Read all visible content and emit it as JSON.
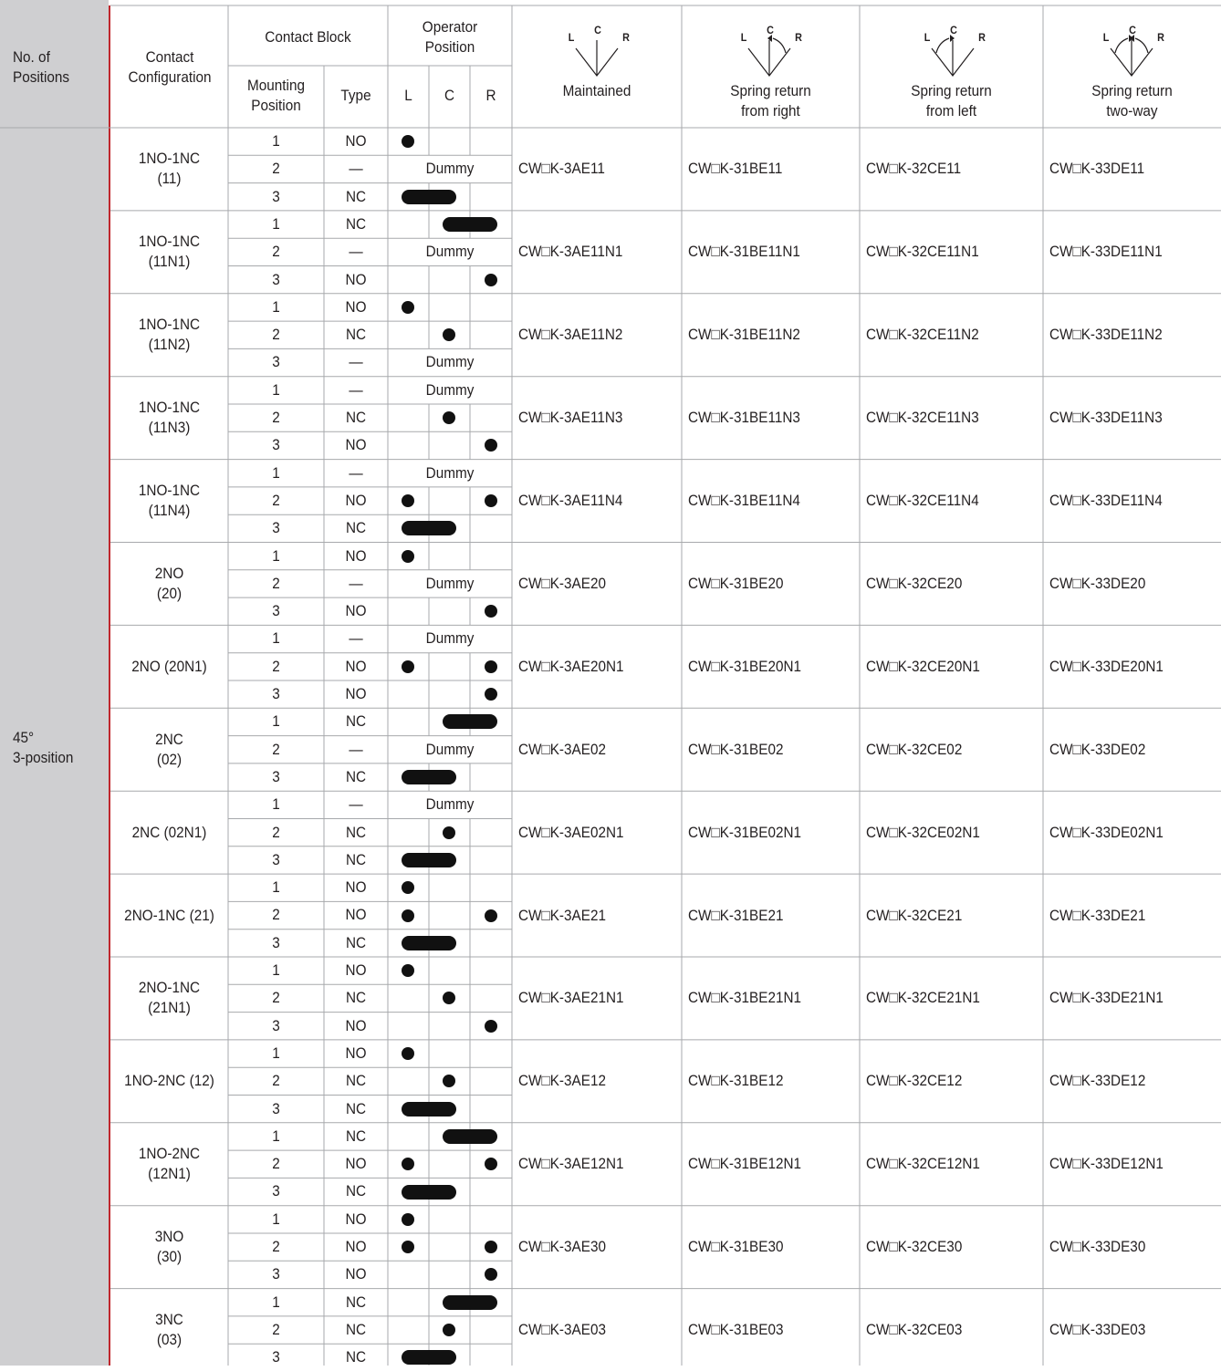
{
  "header": {
    "positions_label": "No. of\nPositions",
    "config_label": "Contact\nConfiguration",
    "contact_block": "Contact Block",
    "operator_position": "Operator\nPosition",
    "mounting_position": "Mounting\nPosition",
    "type": "Type",
    "pos_l": "L",
    "pos_c": "C",
    "pos_r": "R",
    "diagram_l": "L",
    "diagram_c": "C",
    "diagram_r": "R",
    "maintained": "Maintained",
    "spring_right": "Spring return\nfrom right",
    "spring_left": "Spring return\nfrom left",
    "spring_two": "Spring return\ntwo-way"
  },
  "position_label": "45°\n3-position",
  "dummy_label": "Dummy",
  "groups": [
    {
      "config": "1NO-1NC\n(11)",
      "models": [
        "CW□K-3AE11",
        "CW□K-31BE11",
        "CW□K-32CE11",
        "CW□K-33DE11"
      ],
      "rows": [
        {
          "pos": "1",
          "type": "NO",
          "marks": "L"
        },
        {
          "pos": "2",
          "type": "—",
          "marks": "D"
        },
        {
          "pos": "3",
          "type": "NC",
          "marks": "LC"
        }
      ]
    },
    {
      "config": "1NO-1NC\n(11N1)",
      "models": [
        "CW□K-3AE11N1",
        "CW□K-31BE11N1",
        "CW□K-32CE11N1",
        "CW□K-33DE11N1"
      ],
      "rows": [
        {
          "pos": "1",
          "type": "NC",
          "marks": "CR"
        },
        {
          "pos": "2",
          "type": "—",
          "marks": "D"
        },
        {
          "pos": "3",
          "type": "NO",
          "marks": "R"
        }
      ]
    },
    {
      "config": "1NO-1NC\n(11N2)",
      "models": [
        "CW□K-3AE11N2",
        "CW□K-31BE11N2",
        "CW□K-32CE11N2",
        "CW□K-33DE11N2"
      ],
      "rows": [
        {
          "pos": "1",
          "type": "NO",
          "marks": "L"
        },
        {
          "pos": "2",
          "type": "NC",
          "marks": "C"
        },
        {
          "pos": "3",
          "type": "—",
          "marks": "D"
        }
      ]
    },
    {
      "config": "1NO-1NC\n(11N3)",
      "models": [
        "CW□K-3AE11N3",
        "CW□K-31BE11N3",
        "CW□K-32CE11N3",
        "CW□K-33DE11N3"
      ],
      "rows": [
        {
          "pos": "1",
          "type": "—",
          "marks": "D"
        },
        {
          "pos": "2",
          "type": "NC",
          "marks": "C"
        },
        {
          "pos": "3",
          "type": "NO",
          "marks": "R"
        }
      ]
    },
    {
      "config": "1NO-1NC\n(11N4)",
      "models": [
        "CW□K-3AE11N4",
        "CW□K-31BE11N4",
        "CW□K-32CE11N4",
        "CW□K-33DE11N4"
      ],
      "rows": [
        {
          "pos": "1",
          "type": "—",
          "marks": "D"
        },
        {
          "pos": "2",
          "type": "NO",
          "marks": "L,R"
        },
        {
          "pos": "3",
          "type": "NC",
          "marks": "LC"
        }
      ]
    },
    {
      "config": "2NO\n(20)",
      "models": [
        "CW□K-3AE20",
        "CW□K-31BE20",
        "CW□K-32CE20",
        "CW□K-33DE20"
      ],
      "rows": [
        {
          "pos": "1",
          "type": "NO",
          "marks": "L"
        },
        {
          "pos": "2",
          "type": "—",
          "marks": "D"
        },
        {
          "pos": "3",
          "type": "NO",
          "marks": "R"
        }
      ]
    },
    {
      "config": "2NO (20N1)",
      "models": [
        "CW□K-3AE20N1",
        "CW□K-31BE20N1",
        "CW□K-32CE20N1",
        "CW□K-33DE20N1"
      ],
      "rows": [
        {
          "pos": "1",
          "type": "—",
          "marks": "D"
        },
        {
          "pos": "2",
          "type": "NO",
          "marks": "L,R"
        },
        {
          "pos": "3",
          "type": "NO",
          "marks": "R"
        }
      ]
    },
    {
      "config": "2NC\n(02)",
      "models": [
        "CW□K-3AE02",
        "CW□K-31BE02",
        "CW□K-32CE02",
        "CW□K-33DE02"
      ],
      "rows": [
        {
          "pos": "1",
          "type": "NC",
          "marks": "CR"
        },
        {
          "pos": "2",
          "type": "—",
          "marks": "D"
        },
        {
          "pos": "3",
          "type": "NC",
          "marks": "LC"
        }
      ]
    },
    {
      "config": "2NC (02N1)",
      "models": [
        "CW□K-3AE02N1",
        "CW□K-31BE02N1",
        "CW□K-32CE02N1",
        "CW□K-33DE02N1"
      ],
      "rows": [
        {
          "pos": "1",
          "type": "—",
          "marks": "D"
        },
        {
          "pos": "2",
          "type": "NC",
          "marks": "C"
        },
        {
          "pos": "3",
          "type": "NC",
          "marks": "LC"
        }
      ]
    },
    {
      "config": "2NO-1NC (21)",
      "models": [
        "CW□K-3AE21",
        "CW□K-31BE21",
        "CW□K-32CE21",
        "CW□K-33DE21"
      ],
      "rows": [
        {
          "pos": "1",
          "type": "NO",
          "marks": "L"
        },
        {
          "pos": "2",
          "type": "NO",
          "marks": "L,R"
        },
        {
          "pos": "3",
          "type": "NC",
          "marks": "LC"
        }
      ]
    },
    {
      "config": "2NO-1NC\n(21N1)",
      "models": [
        "CW□K-3AE21N1",
        "CW□K-31BE21N1",
        "CW□K-32CE21N1",
        "CW□K-33DE21N1"
      ],
      "rows": [
        {
          "pos": "1",
          "type": "NO",
          "marks": "L"
        },
        {
          "pos": "2",
          "type": "NC",
          "marks": "C"
        },
        {
          "pos": "3",
          "type": "NO",
          "marks": "R"
        }
      ]
    },
    {
      "config": "1NO-2NC (12)",
      "models": [
        "CW□K-3AE12",
        "CW□K-31BE12",
        "CW□K-32CE12",
        "CW□K-33DE12"
      ],
      "rows": [
        {
          "pos": "1",
          "type": "NO",
          "marks": "L"
        },
        {
          "pos": "2",
          "type": "NC",
          "marks": "C"
        },
        {
          "pos": "3",
          "type": "NC",
          "marks": "LC"
        }
      ]
    },
    {
      "config": "1NO-2NC\n(12N1)",
      "models": [
        "CW□K-3AE12N1",
        "CW□K-31BE12N1",
        "CW□K-32CE12N1",
        "CW□K-33DE12N1"
      ],
      "rows": [
        {
          "pos": "1",
          "type": "NC",
          "marks": "CR"
        },
        {
          "pos": "2",
          "type": "NO",
          "marks": "L,R"
        },
        {
          "pos": "3",
          "type": "NC",
          "marks": "LC"
        }
      ]
    },
    {
      "config": "3NO\n(30)",
      "models": [
        "CW□K-3AE30",
        "CW□K-31BE30",
        "CW□K-32CE30",
        "CW□K-33DE30"
      ],
      "rows": [
        {
          "pos": "1",
          "type": "NO",
          "marks": "L"
        },
        {
          "pos": "2",
          "type": "NO",
          "marks": "L,R"
        },
        {
          "pos": "3",
          "type": "NO",
          "marks": "R"
        }
      ]
    },
    {
      "config": "3NC\n(03)",
      "models": [
        "CW□K-3AE03",
        "CW□K-31BE03",
        "CW□K-32CE03",
        "CW□K-33DE03"
      ],
      "rows": [
        {
          "pos": "1",
          "type": "NC",
          "marks": "CR"
        },
        {
          "pos": "2",
          "type": "NC",
          "marks": "C"
        },
        {
          "pos": "3",
          "type": "NC",
          "marks": "LC"
        }
      ]
    }
  ]
}
